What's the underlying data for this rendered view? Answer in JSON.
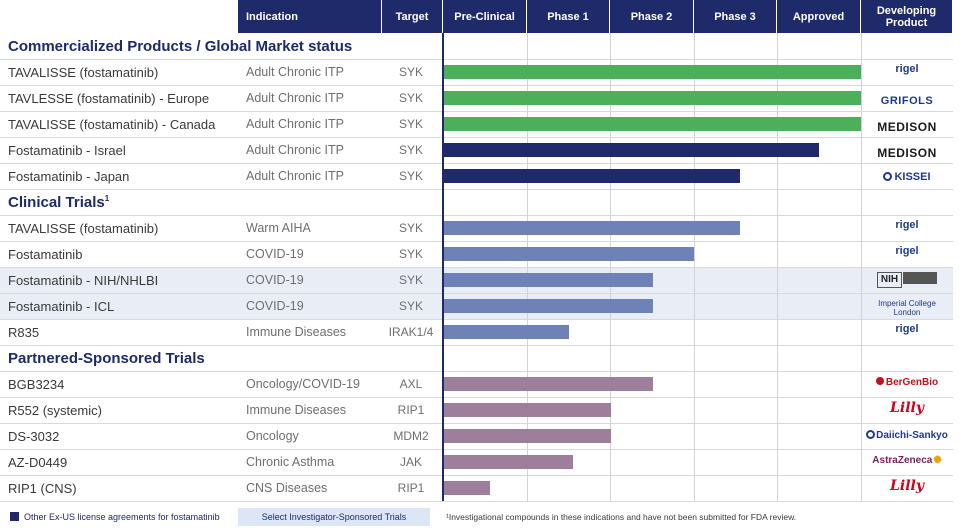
{
  "header": {
    "indication": "Indication",
    "target": "Target",
    "phases": [
      "Pre-Clinical",
      "Phase 1",
      "Phase 2",
      "Phase 3",
      "Approved"
    ],
    "developing_l1": "Developing",
    "developing_l2": "Product"
  },
  "sections": {
    "commercial": "Commercialized Products / Global Market status",
    "clinical": "Clinical Trials",
    "clinical_sup": "1",
    "partnered": "Partnered-Sponsored Trials"
  },
  "colors": {
    "header_bg": "#1f2a6b",
    "approved_green": "#4caf5a",
    "navy": "#1f2a6b",
    "clinical_blue": "#6f82b8",
    "partnered_mauve": "#9d7f9c"
  },
  "rows": [
    {
      "name": "TAVALISSE (fostamatinib)",
      "indication": "Adult Chronic ITP",
      "target": "SYK",
      "progress_pct": 100,
      "color": "#4caf5a",
      "developer": "rigel",
      "developer_icon": "rigel-logo"
    },
    {
      "name": "TAVLESSE (fostamatinib) - Europe",
      "indication": "Adult Chronic ITP",
      "target": "SYK",
      "progress_pct": 100,
      "color": "#4caf5a",
      "developer": "GRIFOLS",
      "developer_icon": "grifols-logo"
    },
    {
      "name": "TAVALISSE (fostamatinib) - Canada",
      "indication": "Adult Chronic ITP",
      "target": "SYK",
      "progress_pct": 100,
      "color": "#4caf5a",
      "developer": "MEDISON",
      "developer_icon": "medison-logo"
    },
    {
      "name": "Fostamatinib - Israel",
      "indication": "Adult Chronic ITP",
      "target": "SYK",
      "progress_pct": 90,
      "color": "#1f2a6b",
      "developer": "MEDISON",
      "developer_icon": "medison-logo"
    },
    {
      "name": "Fostamatinib - Japan",
      "indication": "Adult Chronic ITP",
      "target": "SYK",
      "progress_pct": 71,
      "color": "#1f2a6b",
      "developer": "KISSEI",
      "developer_icon": "kissei-logo"
    },
    {
      "name": "TAVALISSE (fostamatinib)",
      "indication": "Warm AIHA",
      "target": "SYK",
      "progress_pct": 71,
      "color": "#6f82b8",
      "developer": "rigel",
      "developer_icon": "rigel-logo"
    },
    {
      "name": "Fostamatinib",
      "indication": "COVID-19",
      "target": "SYK",
      "progress_pct": 60,
      "color": "#6f82b8",
      "developer": "rigel",
      "developer_icon": "rigel-logo"
    },
    {
      "name": "Fostamatinib - NIH/NHLBI",
      "indication": "COVID-19",
      "target": "SYK",
      "progress_pct": 50,
      "color": "#6f82b8",
      "developer": "NIH",
      "developer_icon": "nih-logo",
      "highlight": true
    },
    {
      "name": "Fostamatinib - ICL",
      "indication": "COVID-19",
      "target": "SYK",
      "progress_pct": 50,
      "color": "#6f82b8",
      "developer": "Imperial College London",
      "developer_icon": "imperial-logo",
      "highlight": true
    },
    {
      "name": "R835",
      "indication": "Immune Diseases",
      "target": "IRAK1/4",
      "progress_pct": 30,
      "color": "#6f82b8",
      "developer": "rigel",
      "developer_icon": "rigel-logo"
    },
    {
      "name": "BGB3234",
      "indication": "Oncology/COVID-19",
      "target": "AXL",
      "progress_pct": 50,
      "color": "#9d7f9c",
      "developer": "BerGenBio",
      "developer_icon": "bergenbio-logo"
    },
    {
      "name": "R552 (systemic)",
      "indication": "Immune Diseases",
      "target": "RIP1",
      "progress_pct": 40,
      "color": "#9d7f9c",
      "developer": "Lilly",
      "developer_icon": "lilly-logo"
    },
    {
      "name": "DS-3032",
      "indication": "Oncology",
      "target": "MDM2",
      "progress_pct": 40,
      "color": "#9d7f9c",
      "developer": "Daiichi-Sankyo",
      "developer_icon": "daiichi-logo"
    },
    {
      "name": "AZ-D0449",
      "indication": "Chronic Asthma",
      "target": "JAK",
      "progress_pct": 31,
      "color": "#9d7f9c",
      "developer": "AstraZeneca",
      "developer_icon": "astrazeneca-logo"
    },
    {
      "name": "RIP1 (CNS)",
      "indication": "CNS Diseases",
      "target": "RIP1",
      "progress_pct": 11,
      "color": "#9d7f9c",
      "developer": "Lilly",
      "developer_icon": "lilly-logo"
    }
  ],
  "footer": {
    "legend1": "Other Ex-US license agreements for fostamatinib",
    "legend2": "Select Investigator-Sponsored Trials",
    "note": "¹Investigational compounds in these indications and have not been submitted for FDA review."
  }
}
